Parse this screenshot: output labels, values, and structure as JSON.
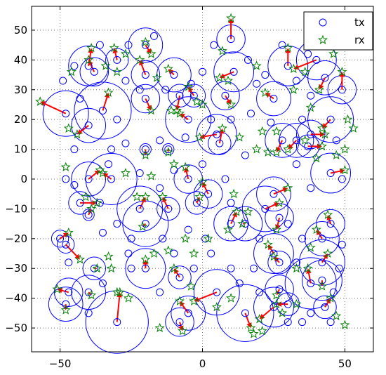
{
  "chart_data": {
    "type": "scatter",
    "title": "",
    "xlabel": "",
    "ylabel": "",
    "xlim": [
      -60,
      60
    ],
    "ylim": [
      -58,
      58
    ],
    "xticks": [
      -50,
      0,
      50
    ],
    "yticks": [
      50,
      40,
      30,
      20,
      10,
      0,
      -10,
      -20,
      -30,
      -40,
      -50
    ],
    "grid": true,
    "legend_position": "top-right",
    "series": [
      {
        "name": "tx",
        "marker": "circle",
        "color": "#0000ff"
      },
      {
        "name": "rx",
        "marker": "star",
        "color": "#008000"
      }
    ],
    "arrow_color": "#ff0000",
    "links": [
      {
        "tx": [
          -48,
          22
        ],
        "rx": [
          -57,
          26
        ],
        "range": 8
      },
      {
        "tx": [
          -40,
          18
        ],
        "rx": [
          -44,
          15
        ],
        "range": 6
      },
      {
        "tx": [
          -35,
          23
        ],
        "rx": [
          -33,
          29
        ],
        "range": 10
      },
      {
        "tx": [
          -40,
          38
        ],
        "rx": [
          -39,
          44
        ],
        "range": 7
      },
      {
        "tx": [
          -38,
          36
        ],
        "rx": [
          -40,
          40
        ],
        "range": 5
      },
      {
        "tx": [
          -30,
          40
        ],
        "rx": [
          -31,
          44
        ],
        "range": 4
      },
      {
        "tx": [
          -20,
          45
        ],
        "rx": [
          -18,
          42
        ],
        "range": 6
      },
      {
        "tx": [
          -20,
          35
        ],
        "rx": [
          -22,
          40
        ],
        "range": 5
      },
      {
        "tx": [
          -20,
          27
        ],
        "rx": [
          -18,
          23
        ],
        "range": 5
      },
      {
        "tx": [
          -10,
          35
        ],
        "rx": [
          -12,
          37
        ],
        "range": 6
      },
      {
        "tx": [
          -5,
          20
        ],
        "rx": [
          -8,
          22
        ],
        "range": 8
      },
      {
        "tx": [
          -8,
          28
        ],
        "rx": [
          -9,
          23
        ],
        "range": 4
      },
      {
        "tx": [
          -3,
          28
        ],
        "rx": [
          -5,
          31
        ],
        "range": 4
      },
      {
        "tx": [
          10,
          47
        ],
        "rx": [
          10,
          54
        ],
        "range": 5
      },
      {
        "tx": [
          11,
          36
        ],
        "rx": [
          6,
          34
        ],
        "range": 7
      },
      {
        "tx": [
          8,
          28
        ],
        "rx": [
          10,
          25
        ],
        "range": 5
      },
      {
        "tx": [
          5,
          15
        ],
        "rx": [
          -1,
          14
        ],
        "range": 7
      },
      {
        "tx": [
          6,
          12
        ],
        "rx": [
          7,
          17
        ],
        "range": 4
      },
      {
        "tx": [
          25,
          27
        ],
        "rx": [
          22,
          29
        ],
        "range": 6
      },
      {
        "tx": [
          30,
          38
        ],
        "rx": [
          30,
          44
        ],
        "range": 7
      },
      {
        "tx": [
          40,
          40
        ],
        "rx": [
          32,
          37
        ],
        "range": 7
      },
      {
        "tx": [
          43,
          34
        ],
        "rx": [
          41,
          30
        ],
        "range": 6
      },
      {
        "tx": [
          49,
          30
        ],
        "rx": [
          49,
          36
        ],
        "range": 5
      },
      {
        "tx": [
          45,
          20
        ],
        "rx": [
          42,
          17
        ],
        "range": 8
      },
      {
        "tx": [
          33,
          13
        ],
        "rx": [
          30,
          10
        ],
        "range": 6
      },
      {
        "tx": [
          28,
          13
        ],
        "rx": [
          26,
          9
        ],
        "range": 6
      },
      {
        "tx": [
          37,
          11
        ],
        "rx": [
          42,
          11
        ],
        "range": 4
      },
      {
        "tx": [
          45,
          2
        ],
        "rx": [
          50,
          3
        ],
        "range": 7
      },
      {
        "tx": [
          -20,
          10
        ],
        "rx": [
          -20,
          8
        ],
        "range": 2
      },
      {
        "tx": [
          -12,
          10
        ],
        "rx": [
          -12,
          9
        ],
        "range": 2
      },
      {
        "tx": [
          -40,
          0
        ],
        "rx": [
          -36,
          3
        ],
        "range": 6
      },
      {
        "tx": [
          -32,
          0
        ],
        "rx": [
          -35,
          2
        ],
        "range": 9
      },
      {
        "tx": [
          -43,
          -8
        ],
        "rx": [
          -37,
          -8
        ],
        "range": 4
      },
      {
        "tx": [
          -40,
          -12
        ],
        "rx": [
          -39,
          -10
        ],
        "range": 2
      },
      {
        "tx": [
          -22,
          -10
        ],
        "rx": [
          -20,
          -6
        ],
        "range": 8
      },
      {
        "tx": [
          -20,
          -15
        ],
        "rx": [
          -21,
          -16
        ],
        "range": 8
      },
      {
        "tx": [
          -12,
          -10
        ],
        "rx": [
          -14,
          -6
        ],
        "range": 4
      },
      {
        "tx": [
          -5,
          0
        ],
        "rx": [
          -6,
          4
        ],
        "range": 5
      },
      {
        "tx": [
          -2,
          -8
        ],
        "rx": [
          -1,
          -6
        ],
        "range": 4
      },
      {
        "tx": [
          2,
          -5
        ],
        "rx": [
          0,
          -1
        ],
        "range": 5
      },
      {
        "tx": [
          10,
          -15
        ],
        "rx": [
          12,
          -11
        ],
        "range": 6
      },
      {
        "tx": [
          15,
          -15
        ],
        "rx": [
          14,
          -15
        ],
        "range": 6
      },
      {
        "tx": [
          22,
          -10
        ],
        "rx": [
          27,
          -8
        ],
        "range": 8
      },
      {
        "tx": [
          27,
          -13
        ],
        "rx": [
          26,
          -17
        ],
        "range": 5
      },
      {
        "tx": [
          25,
          -5
        ],
        "rx": [
          30,
          -3
        ],
        "range": 6
      },
      {
        "tx": [
          -50,
          -20
        ],
        "rx": [
          -47,
          -18
        ],
        "range": 3
      },
      {
        "tx": [
          -48,
          -22
        ],
        "rx": [
          -43,
          -27
        ],
        "range": 3
      },
      {
        "tx": [
          -38,
          -30
        ],
        "rx": [
          -37,
          -30
        ],
        "range": 4
      },
      {
        "tx": [
          -47,
          -38
        ],
        "rx": [
          -51,
          -37
        ],
        "range": 5
      },
      {
        "tx": [
          -48,
          -42
        ],
        "rx": [
          -48,
          -44
        ],
        "range": 6
      },
      {
        "tx": [
          -40,
          -38
        ],
        "rx": [
          -39,
          -39
        ],
        "range": 6
      },
      {
        "tx": [
          -30,
          -48
        ],
        "rx": [
          -29,
          -38
        ],
        "range": 11
      },
      {
        "tx": [
          -20,
          -30
        ],
        "rx": [
          -20,
          -27
        ],
        "range": 7
      },
      {
        "tx": [
          -8,
          -33
        ],
        "rx": [
          -10,
          -30
        ],
        "range": 4
      },
      {
        "tx": [
          -5,
          -45
        ],
        "rx": [
          -8,
          -41
        ],
        "range": 6
      },
      {
        "tx": [
          -8,
          -48
        ],
        "rx": [
          -7,
          -51
        ],
        "range": 5
      },
      {
        "tx": [
          5,
          -38
        ],
        "rx": [
          -3,
          -41
        ],
        "range": 8
      },
      {
        "tx": [
          15,
          -45
        ],
        "rx": [
          17,
          -50
        ],
        "range": 10
      },
      {
        "tx": [
          25,
          -43
        ],
        "rx": [
          20,
          -47
        ],
        "range": 7
      },
      {
        "tx": [
          27,
          -37
        ],
        "rx": [
          26,
          -39
        ],
        "range": 5
      },
      {
        "tx": [
          30,
          -42
        ],
        "rx": [
          26,
          -42
        ],
        "range": 4
      },
      {
        "tx": [
          38,
          -35
        ],
        "rx": [
          37,
          -30
        ],
        "range": 9
      },
      {
        "tx": [
          42,
          -34
        ],
        "rx": [
          42,
          -36
        ],
        "range": 7
      },
      {
        "tx": [
          42,
          -28
        ],
        "rx": [
          44,
          -25
        ],
        "range": 8
      },
      {
        "tx": [
          43,
          -43
        ],
        "rx": [
          45,
          -40
        ],
        "range": 4
      },
      {
        "tx": [
          42,
          -20
        ],
        "rx": [
          40,
          -17
        ],
        "range": 6
      },
      {
        "tx": [
          45,
          -15
        ],
        "rx": [
          44,
          -12
        ],
        "range": 5
      },
      {
        "tx": [
          25,
          -25
        ],
        "rx": [
          23,
          -22
        ],
        "range": 7
      },
      {
        "tx": [
          27,
          -28
        ],
        "rx": [
          25,
          -26
        ],
        "range": 4
      },
      {
        "tx": [
          38,
          15
        ],
        "rx": [
          43,
          15
        ],
        "range": 5
      }
    ],
    "extra_tx": [
      [
        -45,
        38
      ],
      [
        -49,
        33
      ],
      [
        -36,
        45
      ],
      [
        -27,
        33
      ],
      [
        -26,
        45
      ],
      [
        -22,
        30
      ],
      [
        -17,
        48
      ],
      [
        -13,
        30
      ],
      [
        -4,
        32
      ],
      [
        0,
        36
      ],
      [
        4,
        45
      ],
      [
        16,
        40
      ],
      [
        19,
        32
      ],
      [
        17,
        22
      ],
      [
        22,
        35
      ],
      [
        24,
        19
      ],
      [
        35,
        20
      ],
      [
        38,
        28
      ],
      [
        33,
        33
      ],
      [
        47,
        13
      ],
      [
        49,
        0
      ],
      [
        33,
        5
      ],
      [
        38,
        -3
      ],
      [
        15,
        8
      ],
      [
        -27,
        12
      ],
      [
        -22,
        2
      ],
      [
        -32,
        10
      ],
      [
        -45,
        10
      ],
      [
        -48,
        0
      ],
      [
        -45,
        -2
      ],
      [
        -36,
        -8
      ],
      [
        -30,
        -15
      ],
      [
        -25,
        -20
      ],
      [
        -26,
        -25
      ],
      [
        -35,
        -18
      ],
      [
        -47,
        -28
      ],
      [
        -35,
        -35
      ],
      [
        -25,
        -30
      ],
      [
        -15,
        -38
      ],
      [
        -10,
        -25
      ],
      [
        -3,
        -30
      ],
      [
        3,
        -25
      ],
      [
        10,
        -30
      ],
      [
        13,
        -35
      ],
      [
        20,
        -20
      ],
      [
        18,
        -30
      ],
      [
        30,
        -15
      ],
      [
        35,
        -20
      ],
      [
        33,
        -28
      ],
      [
        35,
        -48
      ],
      [
        45,
        -48
      ],
      [
        48,
        -30
      ],
      [
        49,
        -22
      ],
      [
        -5,
        -17
      ],
      [
        1,
        -20
      ],
      [
        -14,
        -20
      ],
      [
        0,
        5
      ],
      [
        8,
        0
      ],
      [
        -10,
        3
      ],
      [
        -15,
        13
      ],
      [
        -6,
        14
      ],
      [
        3,
        20
      ],
      [
        10,
        20
      ],
      [
        28,
        45
      ],
      [
        37,
        42
      ],
      [
        45,
        45
      ],
      [
        -43,
        27
      ],
      [
        -30,
        20
      ],
      [
        -33,
        5
      ],
      [
        -15,
        -3
      ],
      [
        10,
        -8
      ],
      [
        20,
        -38
      ],
      [
        30,
        -48
      ],
      [
        38,
        -45
      ],
      [
        46,
        -38
      ],
      [
        -40,
        -45
      ]
    ],
    "extra_rx": [
      [
        -47,
        17
      ],
      [
        -48,
        4
      ],
      [
        -46,
        36
      ],
      [
        -30,
        36
      ],
      [
        -16,
        34
      ],
      [
        -2,
        26
      ],
      [
        7,
        43
      ],
      [
        9,
        33
      ],
      [
        19,
        38
      ],
      [
        21,
        16
      ],
      [
        26,
        16
      ],
      [
        38,
        24
      ],
      [
        51,
        20
      ],
      [
        53,
        17
      ],
      [
        50,
        10
      ],
      [
        47,
        8
      ],
      [
        40,
        7
      ],
      [
        36,
        13
      ],
      [
        23,
        9
      ],
      [
        19,
        10
      ],
      [
        -10,
        5
      ],
      [
        -18,
        1
      ],
      [
        -23,
        -6
      ],
      [
        -27,
        2
      ],
      [
        -41,
        -6
      ],
      [
        -33,
        -26
      ],
      [
        -32,
        -30
      ],
      [
        -26,
        -40
      ],
      [
        -17,
        -25
      ],
      [
        -12,
        -24
      ],
      [
        -3,
        -25
      ],
      [
        -4,
        -36
      ],
      [
        5,
        -43
      ],
      [
        10,
        -40
      ],
      [
        18,
        -52
      ],
      [
        21,
        -51
      ],
      [
        33,
        -30
      ],
      [
        38,
        -23
      ],
      [
        47,
        -46
      ],
      [
        50,
        -49
      ],
      [
        33,
        -42
      ],
      [
        28,
        -45
      ],
      [
        -15,
        -50
      ],
      [
        -30,
        -38
      ],
      [
        9,
        -17
      ],
      [
        2,
        -20
      ],
      [
        -6,
        -20
      ],
      [
        16,
        -11
      ],
      [
        11,
        -5
      ],
      [
        0,
        25
      ],
      [
        13,
        14
      ],
      [
        -11,
        23
      ],
      [
        32,
        30
      ],
      [
        36,
        36
      ],
      [
        46,
        42
      ],
      [
        -27,
        42
      ],
      [
        -20,
        46
      ],
      [
        -34,
        38
      ]
    ]
  }
}
